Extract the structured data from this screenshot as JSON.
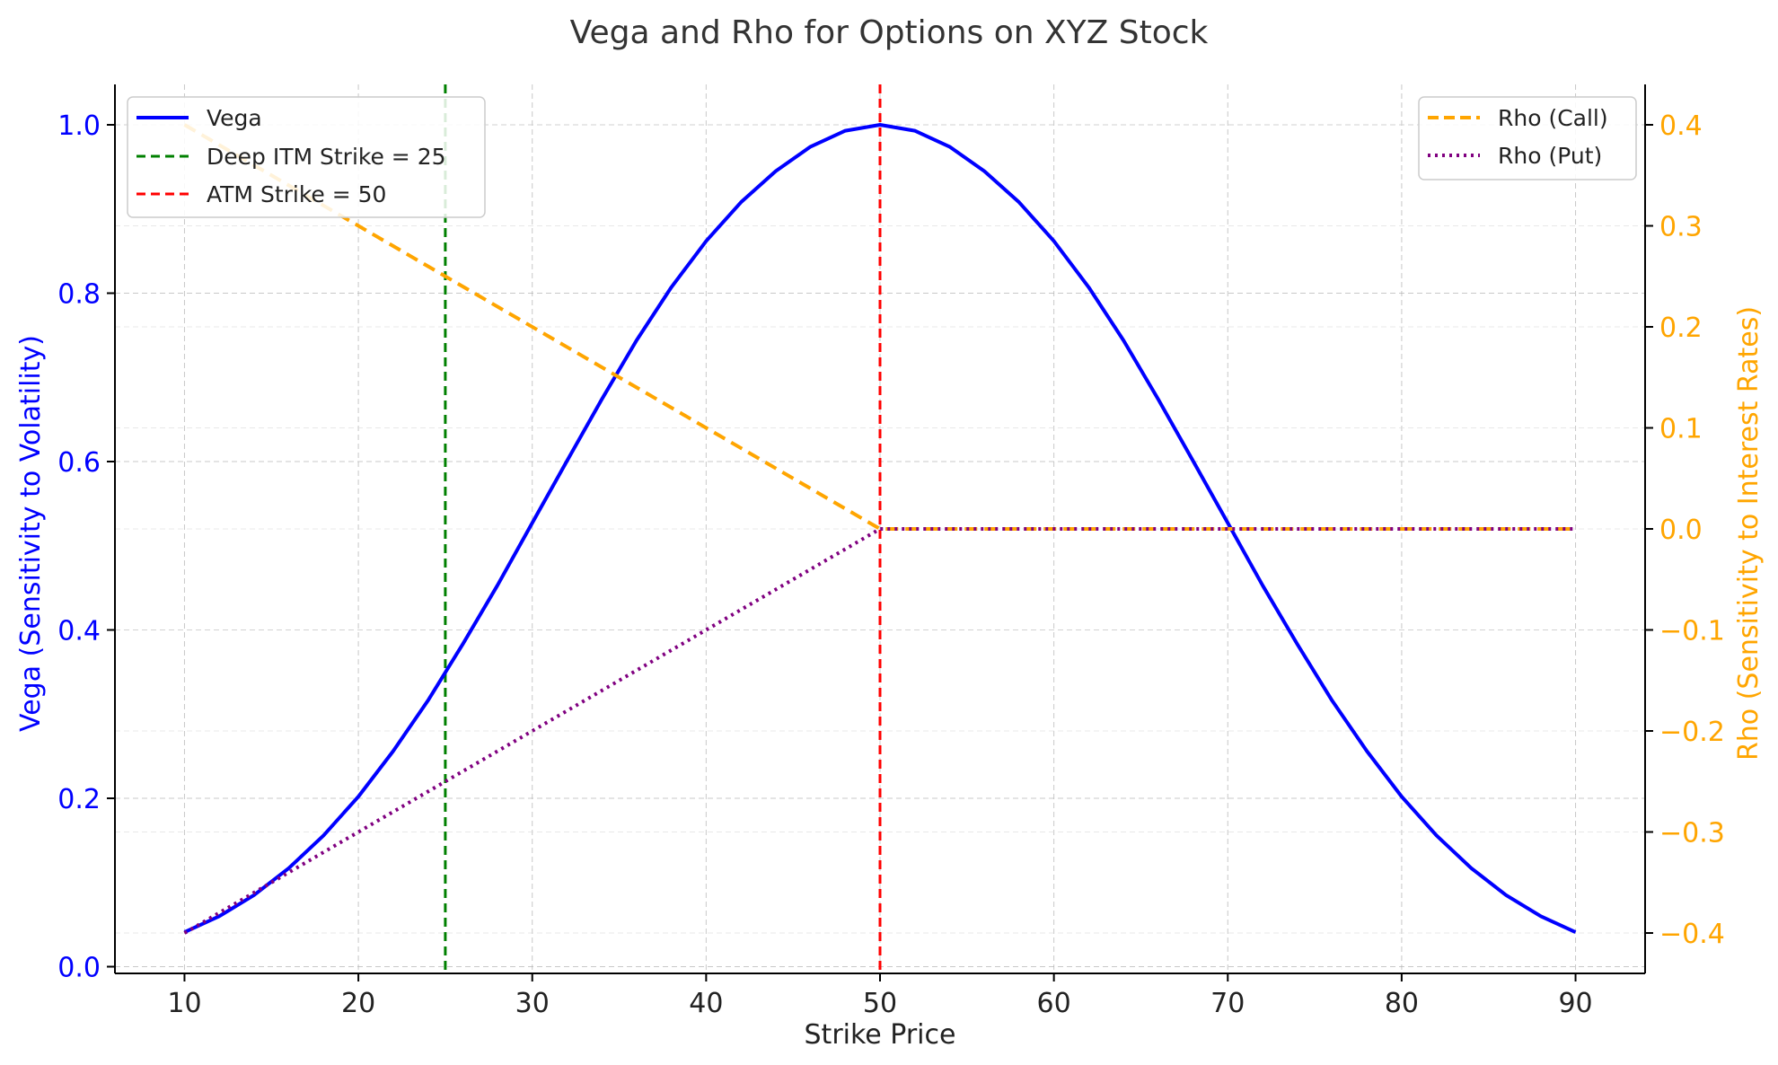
{
  "chart_data": {
    "type": "line",
    "title": "Vega and Rho for Options on XYZ Stock",
    "xlabel": "Strike Price",
    "ylabel_left": "Vega (Sensitivity to Volatility)",
    "ylabel_right": "Rho (Sensitivity to Interest Rates)",
    "xlim": [
      6,
      94
    ],
    "ylim_left": [
      -0.008,
      1.048
    ],
    "ylim_right": [
      -0.44,
      0.44
    ],
    "x_ticks": [
      10,
      20,
      30,
      40,
      50,
      60,
      70,
      80,
      90
    ],
    "x_tick_labels": [
      "10",
      "20",
      "30",
      "40",
      "50",
      "60",
      "70",
      "80",
      "90"
    ],
    "y_left_ticks": [
      0.0,
      0.2,
      0.4,
      0.6,
      0.8,
      1.0
    ],
    "y_left_tick_labels": [
      "0.0",
      "0.2",
      "0.4",
      "0.6",
      "0.8",
      "1.0"
    ],
    "y_right_ticks": [
      -0.4,
      -0.3,
      -0.2,
      -0.1,
      0.0,
      0.1,
      0.2,
      0.3,
      0.4
    ],
    "y_right_tick_labels": [
      "−0.4",
      "−0.3",
      "−0.2",
      "−0.1",
      "0.0",
      "0.1",
      "0.2",
      "0.3",
      "0.4"
    ],
    "grid": true,
    "series": [
      {
        "name": "Vega",
        "axis": "left",
        "color": "#0000ff",
        "style": "solid",
        "x": [
          10,
          12,
          14,
          16,
          18,
          20,
          22,
          24,
          26,
          28,
          30,
          32,
          34,
          36,
          38,
          40,
          42,
          44,
          46,
          48,
          50,
          52,
          54,
          56,
          58,
          60,
          62,
          64,
          66,
          68,
          70,
          72,
          74,
          76,
          78,
          80,
          82,
          84,
          86,
          88,
          90
        ],
        "y": [
          0.041,
          0.06,
          0.085,
          0.117,
          0.156,
          0.202,
          0.256,
          0.316,
          0.383,
          0.453,
          0.527,
          0.601,
          0.674,
          0.744,
          0.807,
          0.862,
          0.908,
          0.945,
          0.974,
          0.993,
          1.0,
          0.993,
          0.974,
          0.945,
          0.908,
          0.862,
          0.807,
          0.744,
          0.674,
          0.601,
          0.527,
          0.453,
          0.383,
          0.316,
          0.256,
          0.202,
          0.156,
          0.117,
          0.085,
          0.06,
          0.041
        ]
      },
      {
        "name": "Rho (Call)",
        "axis": "right",
        "color": "#ffa500",
        "style": "dashed",
        "x": [
          10,
          50,
          90
        ],
        "y": [
          0.4,
          0.0,
          0.0
        ]
      },
      {
        "name": "Rho (Put)",
        "axis": "right",
        "color": "#800080",
        "style": "dotted",
        "x": [
          10,
          50,
          90
        ],
        "y": [
          -0.4,
          0.0,
          0.0
        ]
      }
    ],
    "vlines": [
      {
        "name": "Deep ITM Strike = 25",
        "x": 25,
        "color": "#008000"
      },
      {
        "name": "ATM Strike = 50",
        "x": 50,
        "color": "#ff0000"
      }
    ],
    "legend_left": {
      "placement": "top-left",
      "entries": [
        "Vega",
        "Deep ITM Strike = 25",
        "ATM Strike = 50"
      ]
    },
    "legend_right": {
      "placement": "top-right",
      "entries": [
        "Rho (Call)",
        "Rho (Put)"
      ]
    },
    "colors": {
      "left_axis": "#0000ff",
      "right_axis": "#ffa500",
      "title": "#333333"
    }
  }
}
